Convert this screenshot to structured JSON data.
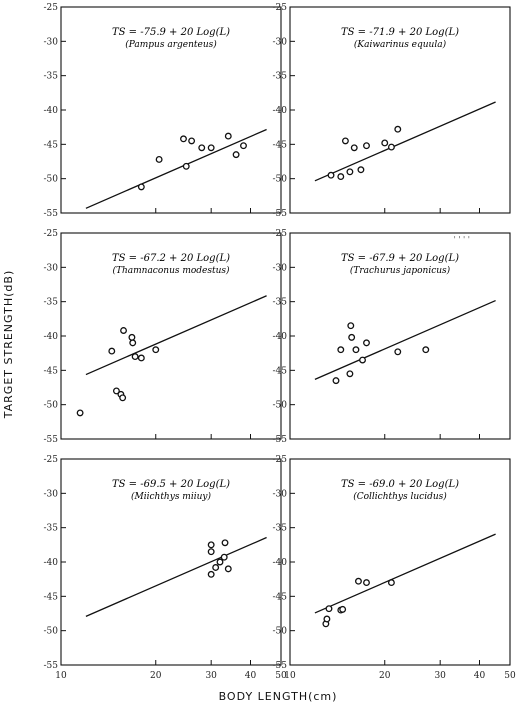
{
  "chart_data": {
    "type": "scatter",
    "xlabel": "BODY LENGTH(cm)",
    "ylabel": "TARGET STRENGTH(dB)",
    "x_scale": "log",
    "xlim": [
      10,
      50
    ],
    "ylim": [
      -55,
      -25
    ],
    "x_ticks": [
      "10",
      "20",
      "30",
      "40",
      "50"
    ],
    "y_ticks": [
      "-25",
      "-30",
      "-35",
      "-40",
      "-45",
      "-50",
      "-55"
    ],
    "panels": [
      {
        "id": "pampus",
        "equation": "TS = -75.9 + 20 Log(L)",
        "species": "(Pampus argenteus)",
        "intercept": -75.9,
        "points": [
          [
            18,
            -51.2
          ],
          [
            20.5,
            -47.2
          ],
          [
            24.5,
            -44.2
          ],
          [
            25,
            -48.2
          ],
          [
            26,
            -44.5
          ],
          [
            28,
            -45.5
          ],
          [
            30,
            -45.5
          ],
          [
            34,
            -43.8
          ],
          [
            36,
            -46.5
          ],
          [
            38,
            -45.2
          ]
        ]
      },
      {
        "id": "kaiwarinus",
        "equation": "TS = -71.9 + 20 Log(L)",
        "species": "(Kaiwarinus equula)",
        "intercept": -71.9,
        "points": [
          [
            13.5,
            -49.5
          ],
          [
            14.5,
            -49.7
          ],
          [
            15,
            -44.5
          ],
          [
            15.5,
            -49
          ],
          [
            16,
            -45.5
          ],
          [
            16.8,
            -48.7
          ],
          [
            17.5,
            -45.2
          ],
          [
            20,
            -44.8
          ],
          [
            21,
            -45.4
          ],
          [
            22,
            -42.8
          ]
        ]
      },
      {
        "id": "thamnaconus",
        "equation": "TS = -67.2 + 20 Log(L)",
        "species": "(Thamnaconus modestus)",
        "intercept": -67.2,
        "points": [
          [
            11.5,
            -51.2
          ],
          [
            14.5,
            -42.2
          ],
          [
            15,
            -48
          ],
          [
            15.5,
            -48.5
          ],
          [
            15.7,
            -49
          ],
          [
            15.8,
            -39.2
          ],
          [
            16.8,
            -40.2
          ],
          [
            16.9,
            -41
          ],
          [
            17.2,
            -43
          ],
          [
            18,
            -43.2
          ],
          [
            20,
            -42
          ]
        ]
      },
      {
        "id": "trachurus",
        "equation": "TS = -67.9 + 20 Log(L)",
        "species": "(Trachurus japonicus)",
        "intercept": -67.9,
        "points": [
          [
            14,
            -46.5
          ],
          [
            14.5,
            -42
          ],
          [
            15.5,
            -45.5
          ],
          [
            15.6,
            -38.5
          ],
          [
            15.7,
            -40.2
          ],
          [
            16.2,
            -42
          ],
          [
            17,
            -43.5
          ],
          [
            17.5,
            -41
          ],
          [
            22,
            -42.3
          ],
          [
            27,
            -42
          ]
        ]
      },
      {
        "id": "miichthys",
        "equation": "TS = -69.5 + 20 Log(L)",
        "species": "(Miichthys miiuy)",
        "intercept": -69.5,
        "points": [
          [
            30,
            -37.5
          ],
          [
            30,
            -38.5
          ],
          [
            30,
            -41.8
          ],
          [
            31,
            -40.8
          ],
          [
            32,
            -40
          ],
          [
            33,
            -39.3
          ],
          [
            33.2,
            -37.2
          ],
          [
            34,
            -41
          ]
        ]
      },
      {
        "id": "collichthys",
        "equation": "TS = -69.0 + 20 Log(L)",
        "species": "(Collichthys lucidus)",
        "intercept": -69.0,
        "points": [
          [
            13,
            -49
          ],
          [
            13.1,
            -48.3
          ],
          [
            13.3,
            -46.8
          ],
          [
            14.5,
            -47
          ],
          [
            14.7,
            -46.9
          ],
          [
            16.5,
            -42.8
          ],
          [
            17.5,
            -43
          ],
          [
            21,
            -43
          ]
        ]
      }
    ]
  },
  "stray_text": "' ' ' '"
}
